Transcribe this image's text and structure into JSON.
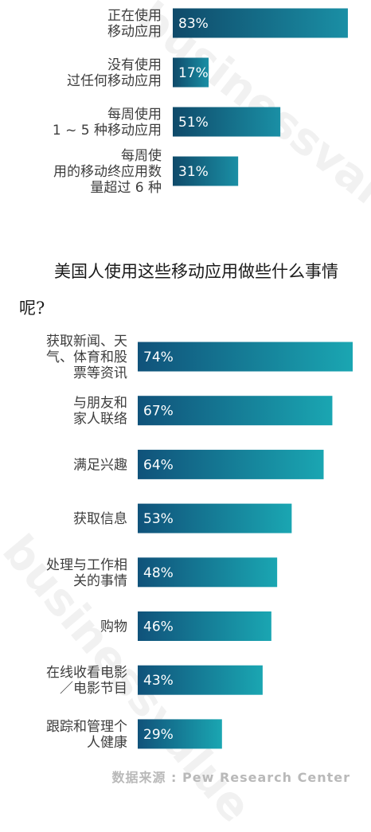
{
  "chart_data": [
    {
      "type": "bar",
      "orientation": "horizontal",
      "categories": [
        [
          "正在使用",
          "移动应用"
        ],
        [
          "没有使用",
          "过任何移动应用"
        ],
        [
          "每周使用",
          "1 ~ 5 种移动应用"
        ],
        [
          "每周使",
          "用的移动终应用数",
          "量超过 6 种"
        ]
      ],
      "values": [
        83,
        17,
        51,
        31
      ],
      "value_labels": [
        "83%",
        "17%",
        "51%",
        "31%"
      ],
      "xlim": [
        0,
        100
      ],
      "colors": [
        "#0f4a6a",
        "#1a8fa5"
      ]
    },
    {
      "type": "bar",
      "orientation": "horizontal",
      "title": "美国人使用这些移动应用做些什么事情呢?",
      "categories": [
        [
          "获取新闻、天",
          "气、体育和股",
          "票等资讯"
        ],
        [
          "与朋友和",
          "家人联络"
        ],
        [
          "满足兴趣"
        ],
        [
          "获取信息"
        ],
        [
          "处理与工作相",
          "关的事情"
        ],
        [
          "购物"
        ],
        [
          "在线收看电影",
          "／电影节目"
        ],
        [
          "跟踪和管理个",
          "人健康"
        ]
      ],
      "values": [
        74,
        67,
        64,
        53,
        48,
        46,
        43,
        29
      ],
      "value_labels": [
        "74%",
        "67%",
        "64%",
        "53%",
        "48%",
        "46%",
        "43%",
        "29%"
      ],
      "xlim": [
        0,
        74
      ],
      "colors": [
        "#10527a",
        "#1aa6b2"
      ]
    }
  ],
  "watermark": "businessvalue",
  "source": "数据来源 :  Pew  Research  Center"
}
